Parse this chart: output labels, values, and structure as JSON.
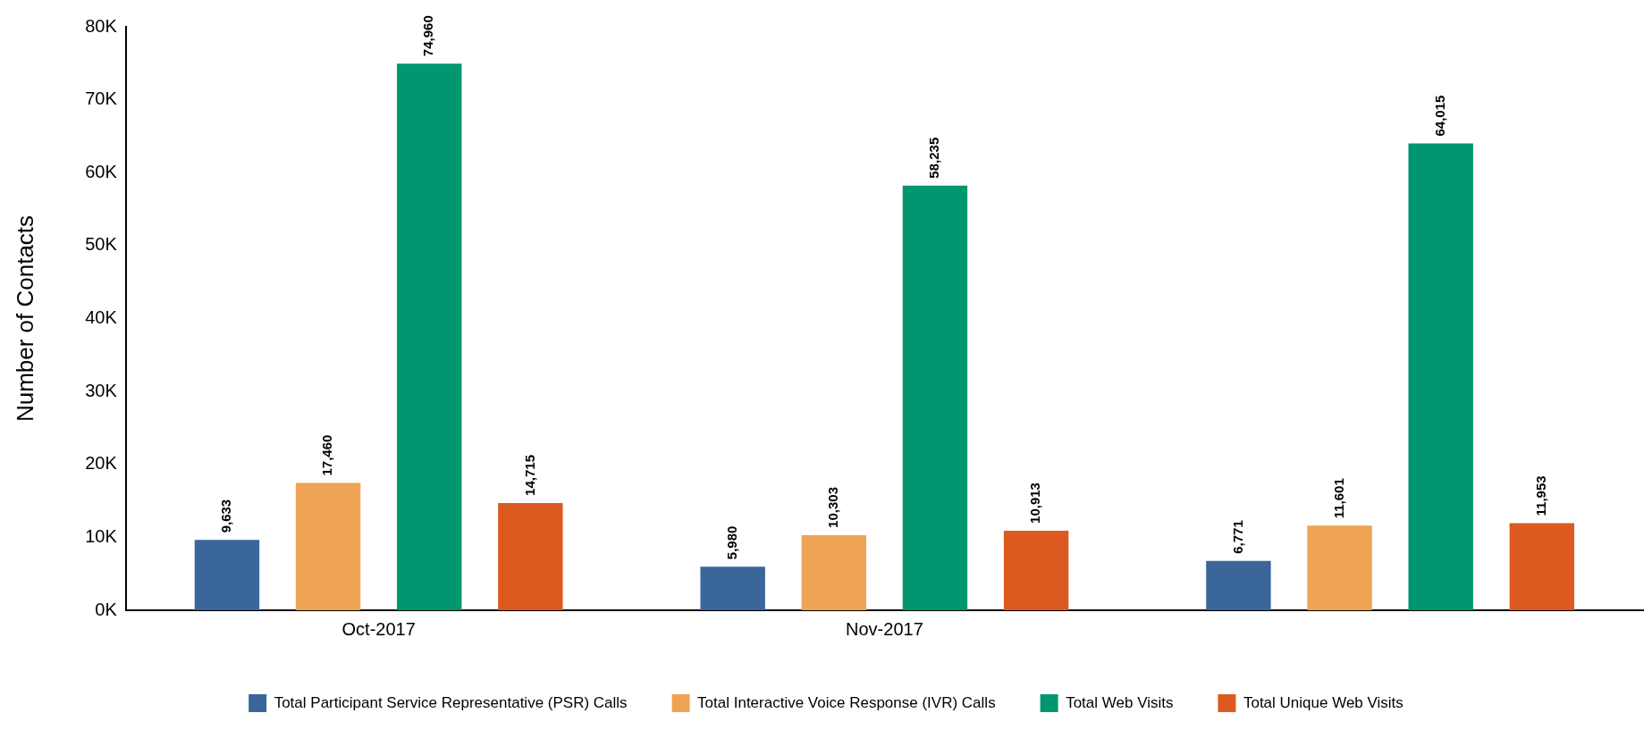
{
  "chart_data": {
    "type": "bar",
    "ylabel": "Number of Contacts",
    "categories": [
      "Oct-2017",
      "Nov-2017",
      null
    ],
    "series": [
      {
        "name": "Total Participant Service Representative (PSR) Calls",
        "color": "#3a6699",
        "values": [
          9633,
          5980,
          6771
        ],
        "value_labels": [
          "9,633",
          "5,980",
          "6,771"
        ]
      },
      {
        "name": "Total Interactive Voice Response (IVR) Calls",
        "color": "#efa354",
        "values": [
          17460,
          10303,
          11601
        ],
        "value_labels": [
          "17,460",
          "10,303",
          "11,601"
        ]
      },
      {
        "name": "Total Web Visits",
        "color": "#009670",
        "values": [
          74960,
          58235,
          64015
        ],
        "value_labels": [
          "74,960",
          "58,235",
          "64,015"
        ]
      },
      {
        "name": "Total Unique Web Visits",
        "color": "#dc5a1f",
        "values": [
          14715,
          10913,
          11953
        ],
        "value_labels": [
          "14,715",
          "10,913",
          "11,953"
        ]
      }
    ],
    "ylim": [
      0,
      80000
    ],
    "yticks": [
      {
        "value": 0,
        "label": "0K"
      },
      {
        "value": 10000,
        "label": "10K"
      },
      {
        "value": 20000,
        "label": "20K"
      },
      {
        "value": 30000,
        "label": "30K"
      },
      {
        "value": 40000,
        "label": "40K"
      },
      {
        "value": 50000,
        "label": "50K"
      },
      {
        "value": 60000,
        "label": "60K"
      },
      {
        "value": 70000,
        "label": "70K"
      },
      {
        "value": 80000,
        "label": "80K"
      }
    ],
    "grid": false,
    "legend": "bottom"
  }
}
